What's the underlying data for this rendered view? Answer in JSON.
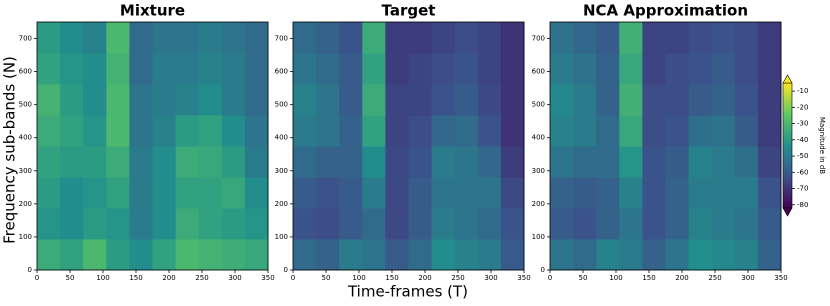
{
  "chart_data": [
    {
      "type": "heatmap",
      "title": "Mixture",
      "y_label": "Frequency sub-bands (N)",
      "xlim": [
        0,
        350
      ],
      "xticks": [
        0,
        50,
        100,
        150,
        200,
        250,
        300,
        350
      ],
      "ylim": [
        0,
        750
      ],
      "yticks": [
        0,
        100,
        200,
        300,
        400,
        500,
        600,
        700
      ],
      "colormap": "viridis",
      "zlim": [
        -82,
        -5
      ],
      "z": [
        [
          -35,
          -38,
          -30,
          -40,
          -45,
          -38,
          -30,
          -32,
          -34,
          -36
        ],
        [
          -42,
          -45,
          -40,
          -42,
          -50,
          -45,
          -35,
          -38,
          -40,
          -42
        ],
        [
          -40,
          -45,
          -42,
          -38,
          -50,
          -45,
          -38,
          -38,
          -36,
          -45
        ],
        [
          -38,
          -40,
          -40,
          -35,
          -50,
          -45,
          -35,
          -36,
          -40,
          -50
        ],
        [
          -35,
          -38,
          -42,
          -30,
          -52,
          -48,
          -40,
          -38,
          -45,
          -52
        ],
        [
          -32,
          -40,
          -45,
          -30,
          -52,
          -50,
          -48,
          -45,
          -50,
          -55
        ],
        [
          -38,
          -42,
          -45,
          -32,
          -55,
          -50,
          -50,
          -48,
          -50,
          -55
        ],
        [
          -40,
          -45,
          -48,
          -30,
          -55,
          -52,
          -52,
          -50,
          -52,
          -55
        ]
      ]
    },
    {
      "type": "heatmap",
      "title": "Target",
      "x_label": "Time-frames (T)",
      "xlim": [
        0,
        350
      ],
      "xticks": [
        0,
        50,
        100,
        150,
        200,
        250,
        300,
        350
      ],
      "ylim": [
        0,
        750
      ],
      "yticks": [
        0,
        100,
        200,
        300,
        400,
        500,
        600,
        700
      ],
      "colormap": "viridis",
      "zlim": [
        -82,
        -5
      ],
      "z": [
        [
          -55,
          -58,
          -50,
          -52,
          -60,
          -55,
          -45,
          -48,
          -50,
          -60
        ],
        [
          -62,
          -64,
          -60,
          -55,
          -65,
          -60,
          -50,
          -52,
          -55,
          -62
        ],
        [
          -60,
          -62,
          -60,
          -50,
          -65,
          -60,
          -52,
          -52,
          -52,
          -65
        ],
        [
          -55,
          -58,
          -58,
          -45,
          -65,
          -62,
          -50,
          -52,
          -56,
          -68
        ],
        [
          -50,
          -52,
          -58,
          -38,
          -66,
          -64,
          -56,
          -55,
          -62,
          -70
        ],
        [
          -48,
          -52,
          -60,
          -35,
          -66,
          -66,
          -62,
          -60,
          -65,
          -70
        ],
        [
          -52,
          -55,
          -60,
          -38,
          -68,
          -66,
          -64,
          -62,
          -66,
          -70
        ],
        [
          -55,
          -58,
          -62,
          -35,
          -68,
          -68,
          -66,
          -64,
          -66,
          -70
        ]
      ]
    },
    {
      "type": "heatmap",
      "title": "NCA Approximation",
      "xlim": [
        0,
        350
      ],
      "xticks": [
        0,
        50,
        100,
        150,
        200,
        250,
        300,
        350
      ],
      "ylim": [
        0,
        750
      ],
      "yticks": [
        0,
        100,
        200,
        300,
        400,
        500,
        600,
        700
      ],
      "colormap": "viridis",
      "zlim": [
        -82,
        -5
      ],
      "z": [
        [
          -52,
          -55,
          -48,
          -50,
          -58,
          -52,
          -44,
          -46,
          -48,
          -58
        ],
        [
          -60,
          -62,
          -58,
          -52,
          -62,
          -58,
          -48,
          -50,
          -52,
          -60
        ],
        [
          -58,
          -60,
          -58,
          -48,
          -62,
          -58,
          -50,
          -50,
          -50,
          -62
        ],
        [
          -52,
          -55,
          -55,
          -42,
          -62,
          -60,
          -48,
          -50,
          -54,
          -66
        ],
        [
          -48,
          -50,
          -55,
          -36,
          -64,
          -62,
          -54,
          -53,
          -60,
          -68
        ],
        [
          -46,
          -50,
          -58,
          -33,
          -64,
          -64,
          -60,
          -58,
          -62,
          -68
        ],
        [
          -50,
          -53,
          -58,
          -36,
          -66,
          -64,
          -62,
          -60,
          -64,
          -68
        ],
        [
          -53,
          -56,
          -60,
          -33,
          -66,
          -66,
          -64,
          -62,
          -64,
          -68
        ]
      ]
    }
  ],
  "colorbar": {
    "label": "Magnitude in dB",
    "lim": [
      -82,
      -5
    ],
    "ticks": [
      -80,
      -70,
      -60,
      -50,
      -40,
      -30,
      -20,
      -10
    ]
  }
}
